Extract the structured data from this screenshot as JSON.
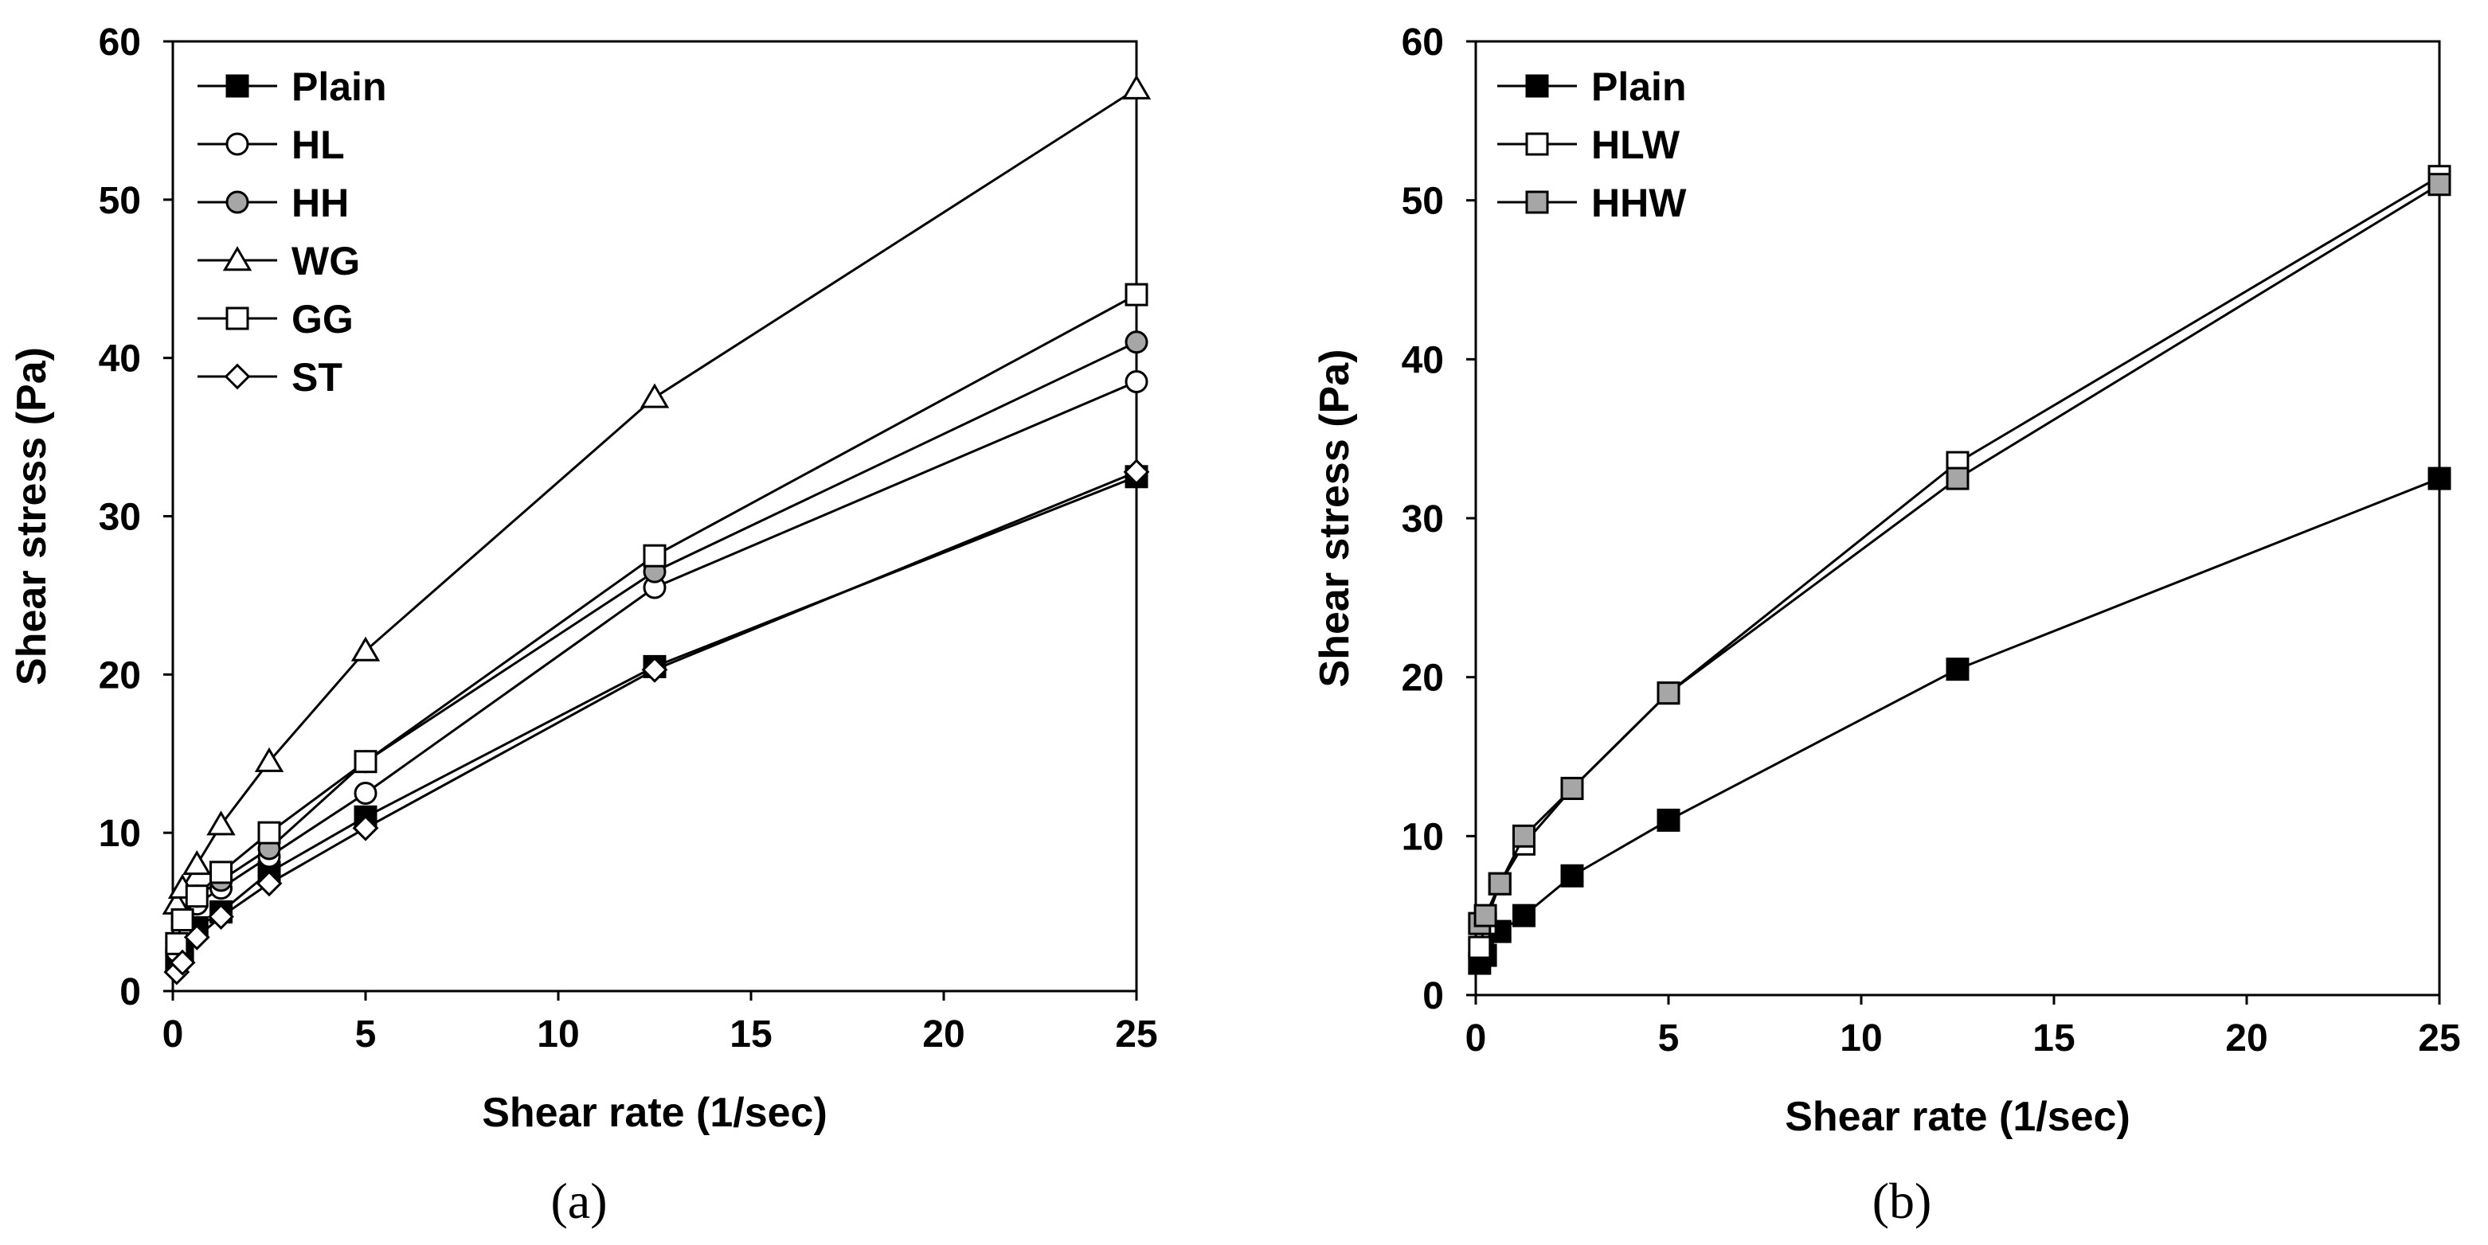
{
  "chart_data": [
    {
      "type": "line",
      "panel_label": "(a)",
      "xlabel": "Shear rate (1/sec)",
      "ylabel": "Shear stress (Pa)",
      "xlim": [
        0,
        25
      ],
      "ylim": [
        0,
        60
      ],
      "xticks": [
        0,
        5,
        10,
        15,
        20,
        25
      ],
      "yticks": [
        0,
        10,
        20,
        30,
        40,
        50,
        60
      ],
      "legend_position": "top-left",
      "grid": false,
      "series": [
        {
          "name": "Plain",
          "marker": "square",
          "fill": "#000000",
          "x": [
            0.1,
            0.25,
            0.625,
            1.25,
            2.5,
            5,
            12.5,
            25
          ],
          "y": [
            2.0,
            2.5,
            4.0,
            5.0,
            7.5,
            11.0,
            20.5,
            32.5
          ]
        },
        {
          "name": "HL",
          "marker": "circle",
          "fill": "#ffffff",
          "x": [
            0.1,
            0.25,
            0.625,
            1.25,
            2.5,
            5,
            12.5,
            25
          ],
          "y": [
            2.5,
            4.0,
            5.5,
            6.5,
            8.5,
            12.5,
            25.5,
            38.5
          ]
        },
        {
          "name": "HH",
          "marker": "circle",
          "fill": "#a6a6a6",
          "x": [
            0.1,
            0.25,
            0.625,
            1.25,
            2.5,
            5,
            12.5,
            25
          ],
          "y": [
            3.0,
            4.5,
            6.0,
            7.0,
            9.0,
            14.5,
            26.5,
            41.0
          ]
        },
        {
          "name": "WG",
          "marker": "triangle",
          "fill": "#ffffff",
          "x": [
            0.1,
            0.25,
            0.625,
            1.25,
            2.5,
            5,
            12.5,
            25
          ],
          "y": [
            5.5,
            6.5,
            8.0,
            10.5,
            14.5,
            21.5,
            37.5,
            57.0
          ]
        },
        {
          "name": "GG",
          "marker": "square",
          "fill": "#ffffff",
          "x": [
            0.1,
            0.25,
            0.625,
            1.25,
            2.5,
            5,
            12.5,
            25
          ],
          "y": [
            3.0,
            4.5,
            6.0,
            7.5,
            10.0,
            14.5,
            27.5,
            44.0
          ]
        },
        {
          "name": "ST",
          "marker": "diamond",
          "fill": "#ffffff",
          "x": [
            0.1,
            0.25,
            0.625,
            1.25,
            2.5,
            5,
            12.5,
            25
          ],
          "y": [
            1.2,
            1.8,
            3.4,
            4.7,
            6.8,
            10.3,
            20.3,
            32.8
          ]
        }
      ]
    },
    {
      "type": "line",
      "panel_label": "(b)",
      "xlabel": "Shear rate (1/sec)",
      "ylabel": "Shear stress (Pa)",
      "xlim": [
        0,
        25
      ],
      "ylim": [
        0,
        60
      ],
      "xticks": [
        0,
        5,
        10,
        15,
        20,
        25
      ],
      "yticks": [
        0,
        10,
        20,
        30,
        40,
        50,
        60
      ],
      "legend_position": "top-left",
      "grid": false,
      "series": [
        {
          "name": "Plain",
          "marker": "square",
          "fill": "#000000",
          "x": [
            0.1,
            0.25,
            0.625,
            1.25,
            2.5,
            5,
            12.5,
            25
          ],
          "y": [
            2.0,
            2.5,
            4.0,
            5.0,
            7.5,
            11.0,
            20.5,
            32.5
          ]
        },
        {
          "name": "HLW",
          "marker": "square",
          "fill": "#ffffff",
          "x": [
            0.1,
            0.25,
            0.625,
            1.25,
            2.5,
            5,
            12.5,
            25
          ],
          "y": [
            3.0,
            4.5,
            7.0,
            9.5,
            13.0,
            19.0,
            33.5,
            51.5
          ]
        },
        {
          "name": "HHW",
          "marker": "square",
          "fill": "#a6a6a6",
          "x": [
            0.1,
            0.25,
            0.625,
            1.25,
            2.5,
            5,
            12.5,
            25
          ],
          "y": [
            4.5,
            5.0,
            7.0,
            10.0,
            13.0,
            19.0,
            32.5,
            51.0
          ]
        }
      ]
    }
  ]
}
